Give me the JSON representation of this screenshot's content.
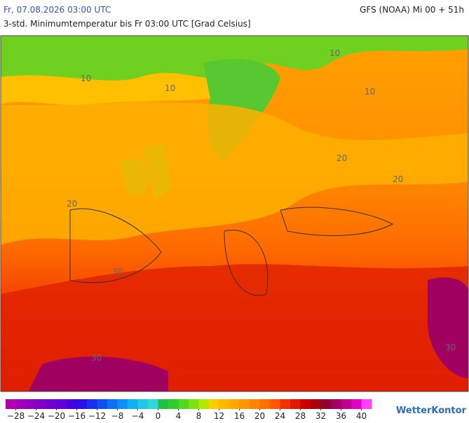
{
  "header": {
    "left": "Fr, 07.08.2026 03:00 UTC",
    "right": "GFS (NOAA) Mi 00 + 51h",
    "subtitle": "3-std. Minimumtemperatur bis Fr 03:00 UTC [Grad Celsius]"
  },
  "map": {
    "contour_labels": [
      "10",
      "10",
      "10",
      "10",
      "20",
      "20",
      "20",
      "30",
      "30",
      "30"
    ]
  },
  "legend": {
    "min": -30,
    "max": 42,
    "colors": [
      "#b000b0",
      "#a000b8",
      "#9000c0",
      "#8000c8",
      "#7000d0",
      "#6000d8",
      "#4800e0",
      "#2c10e8",
      "#1830f0",
      "#1050f0",
      "#1070f4",
      "#1090f4",
      "#10b0f0",
      "#20c8e8",
      "#30d8d8",
      "#20c040",
      "#30cc30",
      "#50d820",
      "#80e010",
      "#b0e800",
      "#ffcc00",
      "#ffb800",
      "#ffa800",
      "#ff9800",
      "#ff8400",
      "#ff7000",
      "#ff5800",
      "#f03000",
      "#e01800",
      "#c80000",
      "#a80010",
      "#900030",
      "#a00060",
      "#c00090",
      "#e000c0",
      "#ff40ff"
    ],
    "ticks": [
      {
        "value": -28,
        "label": "−28"
      },
      {
        "value": -24,
        "label": "−24"
      },
      {
        "value": -20,
        "label": "−20"
      },
      {
        "value": -16,
        "label": "−16"
      },
      {
        "value": -12,
        "label": "−12"
      },
      {
        "value": -8,
        "label": "−8"
      },
      {
        "value": -4,
        "label": "−4"
      },
      0,
      4,
      8,
      12,
      16,
      20,
      24,
      28,
      32,
      36,
      40
    ]
  },
  "logo": "WetterKontor"
}
